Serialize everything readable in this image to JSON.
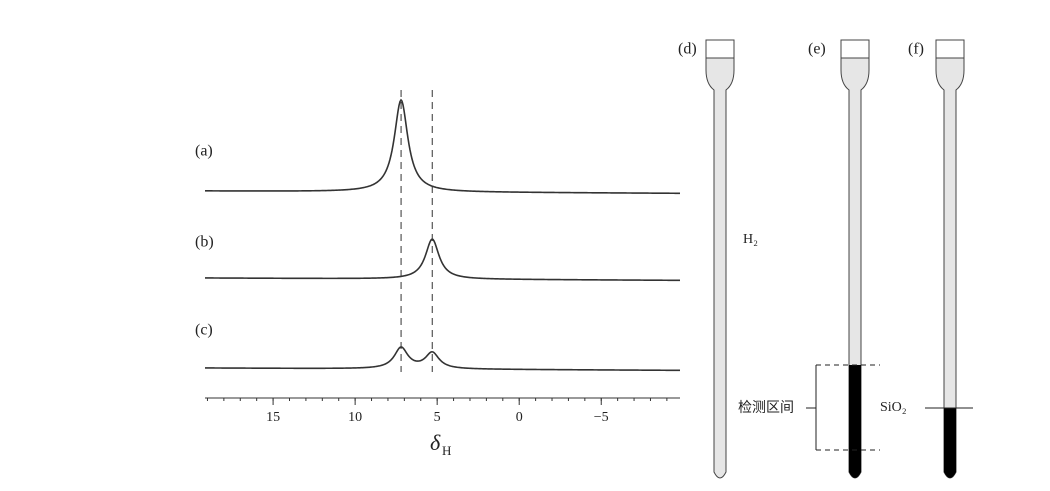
{
  "spectra": {
    "items": [
      {
        "label": "(a)",
        "peaks": [
          {
            "shift": 7.2,
            "height": 92
          }
        ]
      },
      {
        "label": "(b)",
        "peaks": [
          {
            "shift": 5.3,
            "height": 40
          }
        ]
      },
      {
        "label": "(c)",
        "peaks": [
          {
            "shift": 7.2,
            "height": 21
          },
          {
            "shift": 5.3,
            "height": 16
          }
        ]
      }
    ],
    "reference_shifts": [
      7.2,
      5.3
    ],
    "xlim": [
      19.15,
      -9.8
    ],
    "xticks": [
      15,
      10,
      5,
      0,
      {
        "value": -5,
        "label": "−5"
      }
    ],
    "axis_label": "δ",
    "axis_label_sub": "H"
  },
  "tubes": [
    {
      "label": "(d)",
      "annotation": "H₂"
    },
    {
      "label": "(e)",
      "annotation": "检测区间"
    },
    {
      "label": "(f)",
      "annotation": "SiO₂"
    }
  ]
}
